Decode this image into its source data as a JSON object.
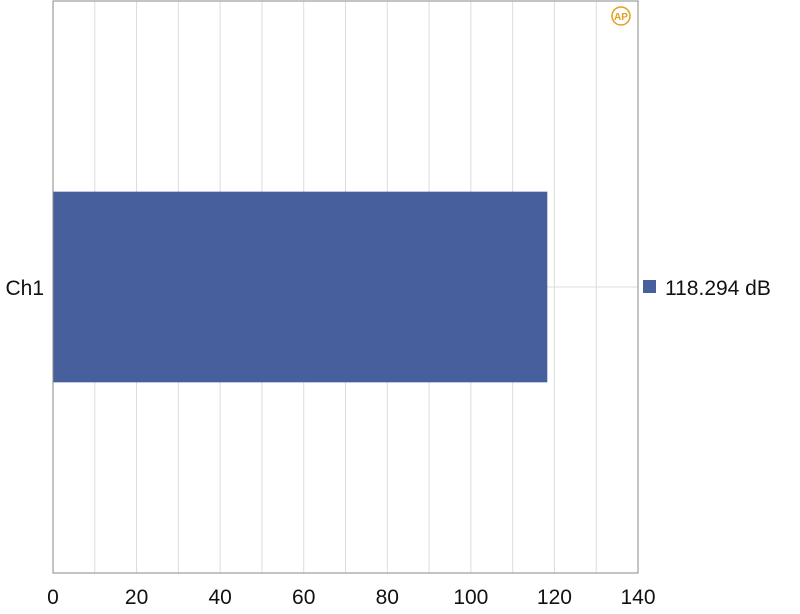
{
  "logo_text": "AP",
  "chart_data": {
    "type": "bar",
    "orientation": "horizontal",
    "categories": [
      "Ch1"
    ],
    "values": [
      118.294
    ],
    "value_labels": [
      "118.294 dB"
    ],
    "xlim": [
      0,
      140
    ],
    "xticks": [
      0,
      20,
      40,
      60,
      80,
      100,
      120,
      140
    ],
    "xtick_labels": [
      "0",
      "20",
      "40",
      "60",
      "80",
      "100",
      "120",
      "140"
    ],
    "minor_grid_step": 10,
    "grid": true,
    "legend_placement": "right",
    "colors": {
      "bar": "#475f9c",
      "grid": "#dcdcdc",
      "frame": "#8a8a8a",
      "logo": "#e0a020"
    }
  }
}
